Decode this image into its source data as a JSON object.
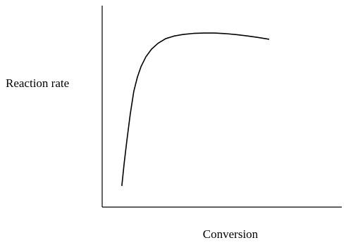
{
  "chart_data": {
    "type": "line",
    "x_label": "Conversion",
    "y_label": "Reaction rate",
    "x": [
      8.2,
      9.2,
      10.3,
      11.7,
      13.2,
      14.7,
      16.2,
      18.2,
      20.6,
      23.3,
      26.5,
      30,
      33.8,
      38,
      42.6,
      47,
      51.5,
      56,
      60.3,
      65,
      69.7
    ],
    "values": [
      10.5,
      22,
      33,
      46,
      57.5,
      64.5,
      69.7,
      74.5,
      78.4,
      81.3,
      83.6,
      84.9,
      85.7,
      86.2,
      86.4,
      86.4,
      86.1,
      85.6,
      85,
      84.2,
      83.3
    ],
    "color": "#000000",
    "xlim": [
      0,
      100
    ],
    "ylim": [
      0,
      100
    ]
  }
}
